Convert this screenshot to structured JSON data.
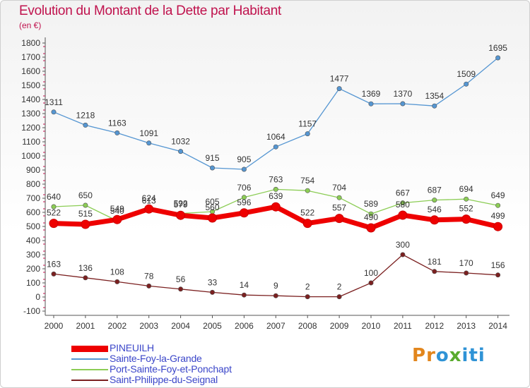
{
  "title": "Evolution du Montant de la Dette par Habitant",
  "subtitle": "(en €)",
  "logo": {
    "text": "Proxiti",
    "letters": [
      "P",
      "r",
      "o",
      "x",
      "i",
      "t",
      "i"
    ],
    "colors": [
      "#e2861d",
      "#e2861d",
      "#2f93d6",
      "#5aab2e",
      "#2f93d6",
      "#2f93d6",
      "#2f93d6"
    ]
  },
  "chart_data": {
    "type": "line",
    "title": "Evolution du Montant de la Dette par Habitant",
    "xlabel": "",
    "ylabel": "(en €)",
    "x": [
      "2000",
      "2001",
      "2002",
      "2003",
      "2004",
      "2005",
      "2006",
      "2007",
      "2008",
      "2009",
      "2010",
      "2011",
      "2012",
      "2013",
      "2014"
    ],
    "ylim": [
      -100,
      1800
    ],
    "yticks": [
      -100,
      0,
      100,
      200,
      300,
      400,
      500,
      600,
      700,
      800,
      900,
      1000,
      1100,
      1200,
      1300,
      1400,
      1500,
      1600,
      1700,
      1800
    ],
    "grid": false,
    "legend_position": "bottom-left",
    "series": [
      {
        "name": "PINEUILH",
        "color": "#ee0000",
        "style": "thick",
        "values": [
          522,
          515,
          549,
          624,
          579,
          560,
          596,
          639,
          522,
          557,
          490,
          580,
          546,
          552,
          499
        ],
        "labels": [
          "522",
          "515",
          "549",
          "624",
          "579",
          "560",
          "596",
          "639",
          "522",
          "557",
          "490",
          "580",
          "546",
          "552",
          "499"
        ]
      },
      {
        "name": "Sainte-Foy-la-Grande",
        "color": "#5596d2",
        "style": "thin",
        "values": [
          1311,
          1218,
          1163,
          1091,
          1032,
          915,
          905,
          1064,
          1157,
          1477,
          1369,
          1370,
          1354,
          1509,
          1695
        ],
        "labels": [
          "1311",
          "1218",
          "1163",
          "1091",
          "1032",
          "915",
          "905",
          "1064",
          "1157",
          "1477",
          "1369",
          "1370",
          "1354",
          "1509",
          "1695"
        ]
      },
      {
        "name": "Port-Sainte-Foy-et-Ponchapt",
        "color": "#8ccd55",
        "style": "thin",
        "values": [
          640,
          650,
          540,
          613,
          592,
          605,
          706,
          763,
          754,
          704,
          589,
          667,
          687,
          694,
          649
        ],
        "labels": [
          "640",
          "650",
          "540",
          "613",
          "592",
          "605",
          "706",
          "763",
          "754",
          "704",
          "589",
          "667",
          "687",
          "694",
          "649"
        ]
      },
      {
        "name": "Saint-Philippe-du-Seignal",
        "color": "#7b2020",
        "style": "thin",
        "values": [
          163,
          136,
          108,
          78,
          56,
          33,
          14,
          9,
          2,
          2,
          100,
          300,
          181,
          170,
          156
        ],
        "labels": [
          "163",
          "136",
          "108",
          "78",
          "56",
          "33",
          "14",
          "9",
          "2",
          "2",
          "100",
          "300",
          "181",
          "170",
          "156"
        ]
      }
    ]
  }
}
